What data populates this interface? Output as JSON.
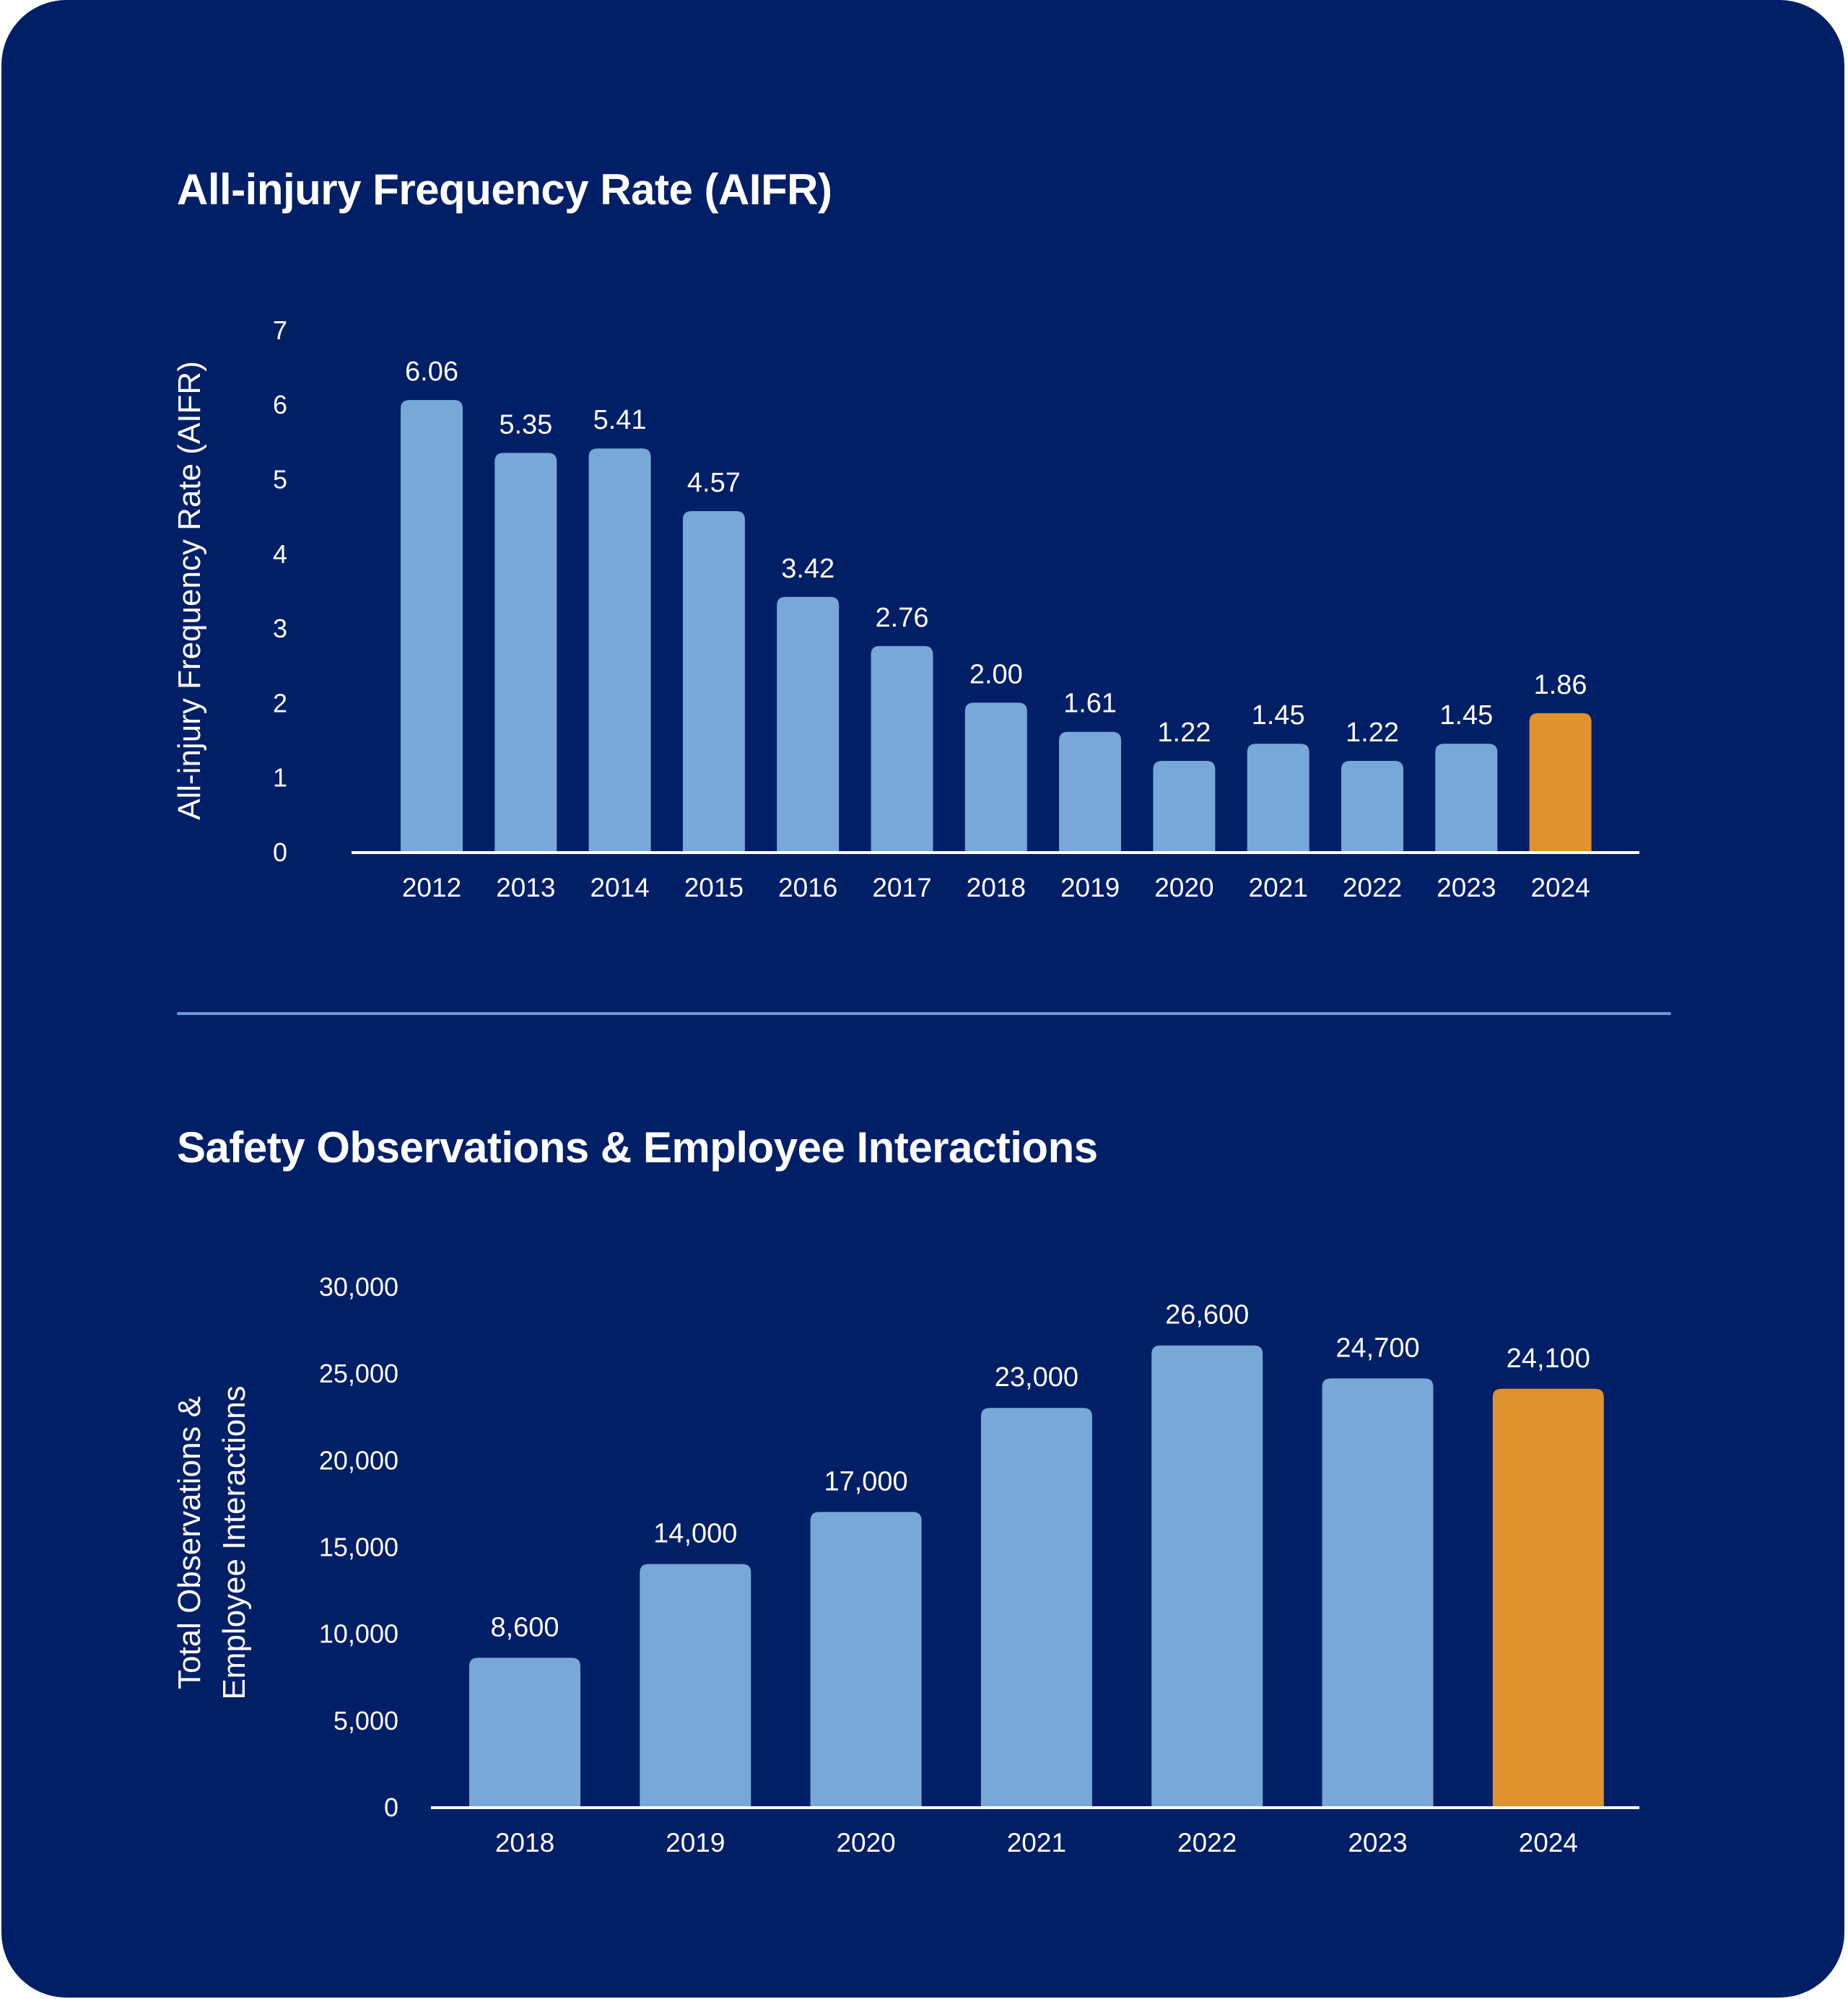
{
  "colors": {
    "background": "#001f66",
    "bar": "#78a8d8",
    "highlight": "#e0922f",
    "axis": "#ffffff",
    "divider": "#6f9ad4",
    "text": "#ffffff"
  },
  "chart_data": [
    {
      "type": "bar",
      "title": "All-injury Frequency Rate (AIFR)",
      "xlabel": "",
      "ylabel": "All-injury Frequency Rate (AIFR)",
      "categories": [
        "2012",
        "2013",
        "2014",
        "2015",
        "2016",
        "2017",
        "2018",
        "2019",
        "2020",
        "2021",
        "2022",
        "2023",
        "2024"
      ],
      "values": [
        6.06,
        5.35,
        5.41,
        4.57,
        3.42,
        2.76,
        2.0,
        1.61,
        1.22,
        1.45,
        1.22,
        1.45,
        1.86
      ],
      "value_labels": [
        "6.06",
        "5.35",
        "5.41",
        "4.57",
        "3.42",
        "2.76",
        "2.00",
        "1.61",
        "1.22",
        "1.45",
        "1.22",
        "1.45",
        "1.86"
      ],
      "highlight_category": "2024",
      "ylim": [
        0,
        7
      ],
      "yticks": [
        0,
        1,
        2,
        3,
        4,
        5,
        6,
        7
      ],
      "ytick_labels": [
        "0",
        "1",
        "2",
        "3",
        "4",
        "5",
        "6",
        "7"
      ],
      "grid": false,
      "legend": "none"
    },
    {
      "type": "bar",
      "title": "Safety Observations & Employee Interactions",
      "xlabel": "",
      "ylabel": [
        "Total Observations &",
        "Employee Interactions"
      ],
      "categories": [
        "2018",
        "2019",
        "2020",
        "2021",
        "2022",
        "2023",
        "2024"
      ],
      "values": [
        8600,
        14000,
        17000,
        23000,
        26600,
        24700,
        24100
      ],
      "value_labels": [
        "8,600",
        "14,000",
        "17,000",
        "23,000",
        "26,600",
        "24,700",
        "24,100"
      ],
      "highlight_category": "2024",
      "ylim": [
        0,
        30000
      ],
      "yticks": [
        0,
        5000,
        10000,
        15000,
        20000,
        25000,
        30000
      ],
      "ytick_labels": [
        "0",
        "5,000",
        "10,000",
        "15,000",
        "20,000",
        "25,000",
        "30,000"
      ],
      "grid": false,
      "legend": "none"
    }
  ]
}
